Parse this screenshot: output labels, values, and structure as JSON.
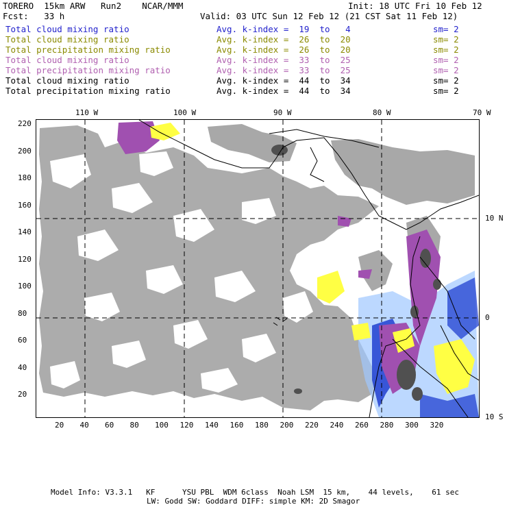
{
  "header": {
    "left_line1": "TORERO  15km ARW   Run2    NCAR/MMM",
    "left_line2": "Fcst:   33 h",
    "init": "Init: 18 UTC Fri 10 Feb 12",
    "valid": "Valid: 03 UTC Sun 12 Feb 12 (21 CST Sat 11 Feb 12)"
  },
  "legend": [
    {
      "field": "Total cloud mixing ratio",
      "kindex": "Avg. k-index =  19  to   4",
      "sm": "sm= 2",
      "color": "#2222cc"
    },
    {
      "field": "Total cloud mixing ratio",
      "kindex": "Avg. k-index =  26  to  20",
      "sm": "sm= 2",
      "color": "#8a8a00"
    },
    {
      "field": "Total precipitation mixing ratio",
      "kindex": "Avg. k-index =  26  to  20",
      "sm": "sm= 2",
      "color": "#8a8a00"
    },
    {
      "field": "Total cloud mixing ratio",
      "kindex": "Avg. k-index =  33  to  25",
      "sm": "sm= 2",
      "color": "#b060b0"
    },
    {
      "field": "Total precipitation mixing ratio",
      "kindex": "Avg. k-index =  33  to  25",
      "sm": "sm= 2",
      "color": "#b060b0"
    },
    {
      "field": "Total cloud mixing ratio",
      "kindex": "Avg. k-index =  44  to  34",
      "sm": "sm= 2",
      "color": "#000000"
    },
    {
      "field": "Total precipitation mixing ratio",
      "kindex": "Avg. k-index =  44  to  34",
      "sm": "sm= 2",
      "color": "#000000"
    }
  ],
  "map": {
    "lon_labels": [
      "110 W",
      "100 W",
      "90 W",
      "80 W",
      "70 W"
    ],
    "lat_labels": [
      "10 N",
      "0",
      "10 S"
    ],
    "x_ticks": [
      "20",
      "40",
      "60",
      "80",
      "100",
      "120",
      "140",
      "160",
      "180",
      "200",
      "220",
      "240",
      "260",
      "280",
      "300",
      "320"
    ],
    "y_ticks": [
      "220",
      "200",
      "180",
      "160",
      "140",
      "120",
      "100",
      "80",
      "60",
      "40",
      "20"
    ],
    "colors": {
      "cloud_gray": "#a8a8a8",
      "dark_gray": "#505050",
      "purple": "#a050b0",
      "yellow": "#ffff44",
      "blue": "#2040d0",
      "light_blue": "#a0c8ff"
    }
  },
  "footer": {
    "line1": "Model Info: V3.3.1   KF      YSU PBL  WDM 6class  Noah LSM  15 km,    44 levels,    61 sec",
    "line2": "LW: Godd SW: Goddard DIFF: simple KM: 2D Smagor"
  }
}
